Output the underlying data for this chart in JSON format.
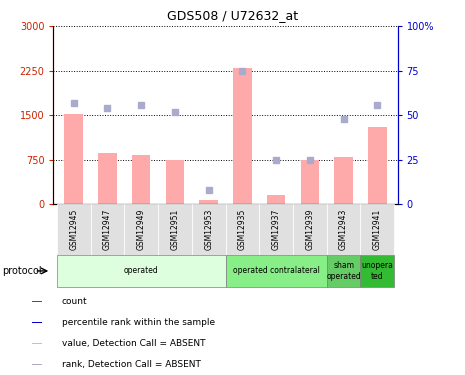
{
  "title": "GDS508 / U72632_at",
  "samples": [
    "GSM12945",
    "GSM12947",
    "GSM12949",
    "GSM12951",
    "GSM12953",
    "GSM12935",
    "GSM12937",
    "GSM12939",
    "GSM12943",
    "GSM12941"
  ],
  "bar_values": [
    1520,
    870,
    840,
    750,
    80,
    2300,
    150,
    750,
    800,
    1300
  ],
  "rank_values": [
    57,
    54,
    56,
    52,
    8,
    75,
    25,
    25,
    48,
    56
  ],
  "ylim_left": [
    0,
    3000
  ],
  "ylim_right": [
    0,
    100
  ],
  "yticks_left": [
    0,
    750,
    1500,
    2250,
    3000
  ],
  "yticks_right": [
    0,
    25,
    50,
    75,
    100
  ],
  "ytick_labels_left": [
    "0",
    "750",
    "1500",
    "2250",
    "3000"
  ],
  "ytick_labels_right": [
    "0",
    "25",
    "50",
    "75",
    "100%"
  ],
  "bar_color": "#ffaaaa",
  "rank_color": "#aaaacc",
  "left_axis_color": "#cc2200",
  "right_axis_color": "#0000cc",
  "groups": [
    {
      "label": "operated",
      "start": 0,
      "end": 5,
      "color": "#ddffdd"
    },
    {
      "label": "operated contralateral",
      "start": 5,
      "end": 8,
      "color": "#88ee88"
    },
    {
      "label": "sham\noperated",
      "start": 8,
      "end": 9,
      "color": "#66cc66"
    },
    {
      "label": "unopera\nted",
      "start": 9,
      "end": 10,
      "color": "#33bb33"
    }
  ],
  "legend_items": [
    {
      "label": "count",
      "color": "#cc2200"
    },
    {
      "label": "percentile rank within the sample",
      "color": "#0000cc"
    },
    {
      "label": "value, Detection Call = ABSENT",
      "color": "#ffaaaa"
    },
    {
      "label": "rank, Detection Call = ABSENT",
      "color": "#aaaacc"
    }
  ],
  "protocol_label": "protocol"
}
